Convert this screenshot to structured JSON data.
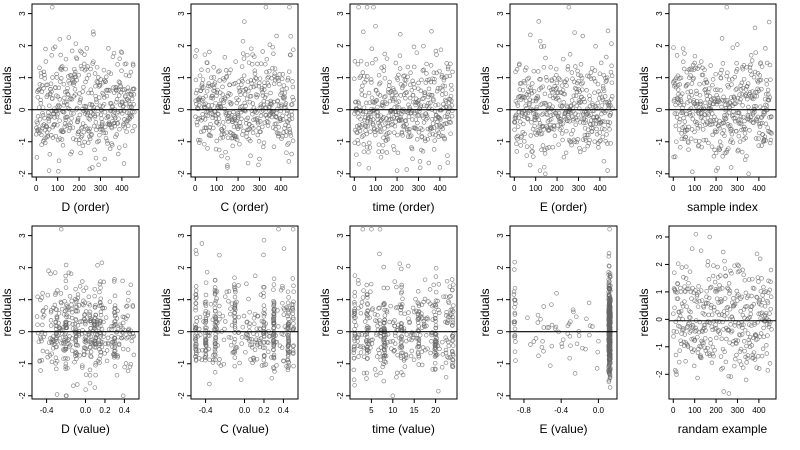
{
  "figure": {
    "layout": {
      "rows": 2,
      "cols": 5
    },
    "colors": {
      "point": "#666666",
      "axis": "#000000",
      "background": "#ffffff"
    }
  },
  "chart_data": [
    {
      "type": "scatter",
      "title": "",
      "xlabel": "D (order)",
      "ylabel": "residuals",
      "xlim": [
        -20,
        480
      ],
      "ylim": [
        -2.1,
        3.3
      ],
      "xticks": [
        0,
        100,
        200,
        300,
        400
      ],
      "xtick_labels": [
        "0",
        "100",
        "200",
        "300",
        "400"
      ],
      "yticks": [
        -2,
        -1,
        0,
        1,
        2,
        3
      ],
      "ytick_labels": [
        "-2",
        "-1",
        "0",
        "1",
        "2",
        "3"
      ],
      "hline": 0,
      "grid": false,
      "marker": "open-circle",
      "generator": {
        "kind": "index",
        "n": 460,
        "seed": 11,
        "sd": 0.75,
        "clip": [
          -2.0,
          3.2
        ]
      },
      "points": [
        [
          75,
          3.2
        ],
        [
          60,
          -1.9
        ],
        [
          250,
          -1.85
        ],
        [
          110,
          2.2
        ]
      ]
    },
    {
      "type": "scatter",
      "title": "",
      "xlabel": "C (order)",
      "ylabel": "residuals",
      "xlim": [
        -20,
        480
      ],
      "ylim": [
        -2.1,
        3.3
      ],
      "xticks": [
        0,
        100,
        200,
        300,
        400
      ],
      "xtick_labels": [
        "0",
        "100",
        "200",
        "300",
        "400"
      ],
      "yticks": [
        -2,
        -1,
        0,
        1,
        2,
        3
      ],
      "ytick_labels": [
        "-2",
        "-1",
        "0",
        "1",
        "2",
        "3"
      ],
      "hline": 0,
      "grid": false,
      "marker": "open-circle",
      "generator": {
        "kind": "index",
        "n": 460,
        "seed": 23,
        "sd": 0.75,
        "clip": [
          -2.0,
          3.2
        ]
      },
      "points": [
        [
          330,
          3.2
        ],
        [
          440,
          3.2
        ],
        [
          150,
          -1.8
        ],
        [
          380,
          2.3
        ]
      ]
    },
    {
      "type": "scatter",
      "title": "",
      "xlabel": "time (order)",
      "ylabel": "residuals",
      "xlim": [
        -20,
        480
      ],
      "ylim": [
        -2.1,
        3.3
      ],
      "xticks": [
        0,
        100,
        200,
        300,
        400
      ],
      "xtick_labels": [
        "0",
        "100",
        "200",
        "300",
        "400"
      ],
      "yticks": [
        -2,
        -1,
        0,
        1,
        2,
        3
      ],
      "ytick_labels": [
        "-2",
        "-1",
        "0",
        "1",
        "2",
        "3"
      ],
      "hline": 0,
      "grid": false,
      "marker": "open-circle",
      "generator": {
        "kind": "index",
        "n": 460,
        "seed": 37,
        "sd": 0.75,
        "clip": [
          -2.0,
          3.2
        ]
      },
      "points": [
        [
          20,
          3.2
        ],
        [
          60,
          3.2
        ],
        [
          90,
          3.2
        ],
        [
          200,
          -1.9
        ],
        [
          400,
          -1.8
        ]
      ]
    },
    {
      "type": "scatter",
      "title": "",
      "xlabel": "E (order)",
      "ylabel": "residuals",
      "xlim": [
        -20,
        480
      ],
      "ylim": [
        -2.1,
        3.3
      ],
      "xticks": [
        0,
        100,
        200,
        300,
        400
      ],
      "xtick_labels": [
        "0",
        "100",
        "200",
        "300",
        "400"
      ],
      "yticks": [
        -2,
        -1,
        0,
        1,
        2,
        3
      ],
      "ytick_labels": [
        "-2",
        "-1",
        "0",
        "1",
        "2",
        "3"
      ],
      "hline": 0,
      "grid": false,
      "marker": "open-circle",
      "generator": {
        "kind": "index",
        "n": 460,
        "seed": 41,
        "sd": 0.75,
        "clip": [
          -2.0,
          3.2
        ]
      },
      "points": [
        [
          255,
          3.2
        ],
        [
          120,
          -1.9
        ],
        [
          320,
          2.3
        ]
      ]
    },
    {
      "type": "scatter",
      "title": "",
      "xlabel": "sample index",
      "ylabel": "residuals",
      "xlim": [
        -20,
        480
      ],
      "ylim": [
        -2.1,
        3.3
      ],
      "xticks": [
        0,
        100,
        200,
        300,
        400
      ],
      "xtick_labels": [
        "0",
        "100",
        "200",
        "300",
        "400"
      ],
      "yticks": [
        -2,
        -1,
        0,
        1,
        2,
        3
      ],
      "ytick_labels": [
        "-2",
        "-1",
        "0",
        "1",
        "2",
        "3"
      ],
      "hline": 0,
      "grid": false,
      "marker": "open-circle",
      "generator": {
        "kind": "index",
        "n": 460,
        "seed": 53,
        "sd": 0.75,
        "clip": [
          -2.0,
          3.2
        ]
      },
      "points": [
        [
          250,
          3.2
        ],
        [
          270,
          -1.8
        ],
        [
          200,
          -1.9
        ]
      ]
    },
    {
      "type": "scatter",
      "title": "",
      "xlabel": "D (value)",
      "ylabel": "residuals",
      "xlim": [
        -0.55,
        0.55
      ],
      "ylim": [
        -2.1,
        3.3
      ],
      "xticks": [
        -0.4,
        0.0,
        0.2,
        0.4
      ],
      "xtick_labels": [
        "-0.4",
        "0.0",
        "0.2",
        "0.4"
      ],
      "yticks": [
        -2,
        -1,
        0,
        1,
        2,
        3
      ],
      "ytick_labels": [
        "-2",
        "-1",
        "0",
        "1",
        "2",
        "3"
      ],
      "hline": 0,
      "grid": false,
      "marker": "open-circle",
      "generator": {
        "kind": "value",
        "n": 460,
        "seed": 61,
        "sd": 0.75,
        "clip": [
          -2.0,
          3.2
        ],
        "x_range": [
          -0.5,
          0.5
        ],
        "stripes": [
          -0.3,
          -0.2,
          -0.1,
          0.0,
          0.05,
          0.1,
          0.15,
          0.3
        ],
        "stripe_frac": 0.4,
        "jitter": 0.008
      },
      "points": [
        [
          -0.25,
          3.2
        ],
        [
          -0.2,
          -2.0
        ]
      ]
    },
    {
      "type": "scatter",
      "title": "",
      "xlabel": "C (value)",
      "ylabel": "residuals",
      "xlim": [
        -0.55,
        0.55
      ],
      "ylim": [
        -2.1,
        3.3
      ],
      "xticks": [
        -0.4,
        0.0,
        0.2,
        0.4
      ],
      "xtick_labels": [
        "-0.4",
        "0.0",
        "0.2",
        "0.4"
      ],
      "yticks": [
        -2,
        -1,
        0,
        1,
        2,
        3
      ],
      "ytick_labels": [
        "-2",
        "-1",
        "0",
        "1",
        "2",
        "3"
      ],
      "hline": 0,
      "grid": false,
      "marker": "open-circle",
      "generator": {
        "kind": "value",
        "n": 460,
        "seed": 71,
        "sd": 0.75,
        "clip": [
          -2.0,
          3.2
        ],
        "x_range": [
          -0.5,
          0.5
        ],
        "stripes": [
          -0.5,
          -0.4,
          -0.3,
          -0.1,
          0.2,
          0.3,
          0.45,
          0.5
        ],
        "stripe_frac": 0.55,
        "jitter": 0.006
      },
      "points": [
        [
          0.35,
          3.2
        ],
        [
          0.5,
          3.2
        ]
      ]
    },
    {
      "type": "scatter",
      "title": "",
      "xlabel": "time (value)",
      "ylabel": "residuals",
      "xlim": [
        0,
        25
      ],
      "ylim": [
        -2.1,
        3.3
      ],
      "xticks": [
        5,
        10,
        15,
        20
      ],
      "xtick_labels": [
        "5",
        "10",
        "15",
        "20"
      ],
      "yticks": [
        -2,
        -1,
        0,
        1,
        2,
        3
      ],
      "ytick_labels": [
        "-2",
        "-1",
        "0",
        "1",
        "2",
        "3"
      ],
      "hline": 0,
      "grid": false,
      "marker": "open-circle",
      "generator": {
        "kind": "value",
        "n": 460,
        "seed": 83,
        "sd": 0.75,
        "clip": [
          -2.0,
          3.2
        ],
        "x_range": [
          1,
          24
        ],
        "stripes": [
          1,
          4,
          8,
          12,
          16,
          20,
          24
        ],
        "stripe_frac": 0.45,
        "jitter": 0.15
      },
      "points": [
        [
          3,
          3.2
        ],
        [
          5,
          3.2
        ],
        [
          7,
          3.2
        ],
        [
          10,
          -2.0
        ]
      ]
    },
    {
      "type": "scatter",
      "title": "",
      "xlabel": "E (value)",
      "ylabel": "residuals",
      "xlim": [
        -0.95,
        0.2
      ],
      "ylim": [
        -2.1,
        3.3
      ],
      "xticks": [
        -0.8,
        -0.4,
        0.0
      ],
      "xtick_labels": [
        "-0.8",
        "-0.4",
        "0.0"
      ],
      "yticks": [
        -2,
        -1,
        0,
        1,
        2,
        3
      ],
      "ytick_labels": [
        "-2",
        "-1",
        "0",
        "1",
        "2",
        "3"
      ],
      "hline": 0,
      "grid": false,
      "marker": "open-circle",
      "generator": {
        "kind": "cluster",
        "n": 420,
        "seed": 97,
        "sd": 0.75,
        "clip": [
          -2.0,
          3.2
        ],
        "cluster_x": 0.12,
        "cluster_frac": 0.85,
        "left_x": -0.9,
        "left_frac": 0.06,
        "jitter": 0.01
      },
      "points": [
        [
          0.12,
          3.2
        ],
        [
          -0.45,
          1.2
        ],
        [
          -0.25,
          -1.3
        ],
        [
          -0.6,
          -0.3
        ],
        [
          -0.1,
          0.9
        ]
      ]
    },
    {
      "type": "scatter",
      "title": "",
      "xlabel": "randam example",
      "ylabel": "residuals",
      "xlim": [
        -20,
        480
      ],
      "ylim": [
        -2.9,
        3.4
      ],
      "xticks": [
        0,
        100,
        200,
        300,
        400
      ],
      "xtick_labels": [
        "0",
        "100",
        "200",
        "300",
        "400"
      ],
      "yticks": [
        -2,
        -1,
        0,
        1,
        2,
        3
      ],
      "ytick_labels": [
        "-2",
        "-1",
        "0",
        "1",
        "2",
        "3"
      ],
      "hline": -0.05,
      "grid": false,
      "marker": "open-circle",
      "generator": {
        "kind": "index",
        "n": 400,
        "seed": 101,
        "sd": 1.0,
        "clip": [
          -2.8,
          3.1
        ]
      },
      "points": [
        [
          170,
          3.0
        ],
        [
          260,
          -2.7
        ],
        [
          130,
          2.5
        ]
      ]
    }
  ]
}
